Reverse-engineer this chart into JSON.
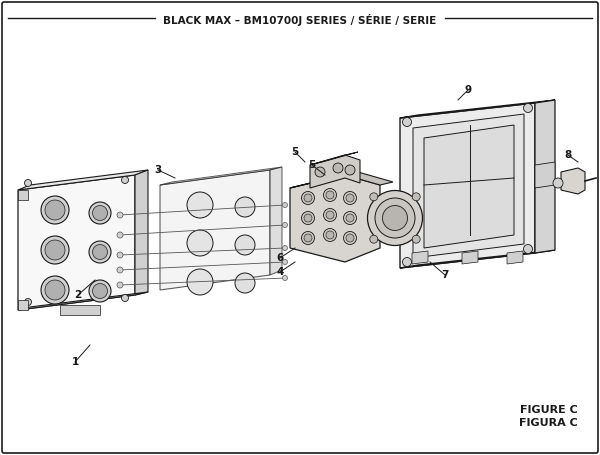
{
  "title": "BLACK MAX – BM10700J SERIES / SÉRIE / SERIE",
  "figure_label1": "FIGURE C",
  "figure_label2": "FIGURA C",
  "bg_color": "#ffffff",
  "lc": "#1a1a1a",
  "gray_light": "#e8e8e8",
  "gray_mid": "#d0d0d0",
  "gray_dark": "#b0b0b0",
  "white_ish": "#f8f8f8"
}
